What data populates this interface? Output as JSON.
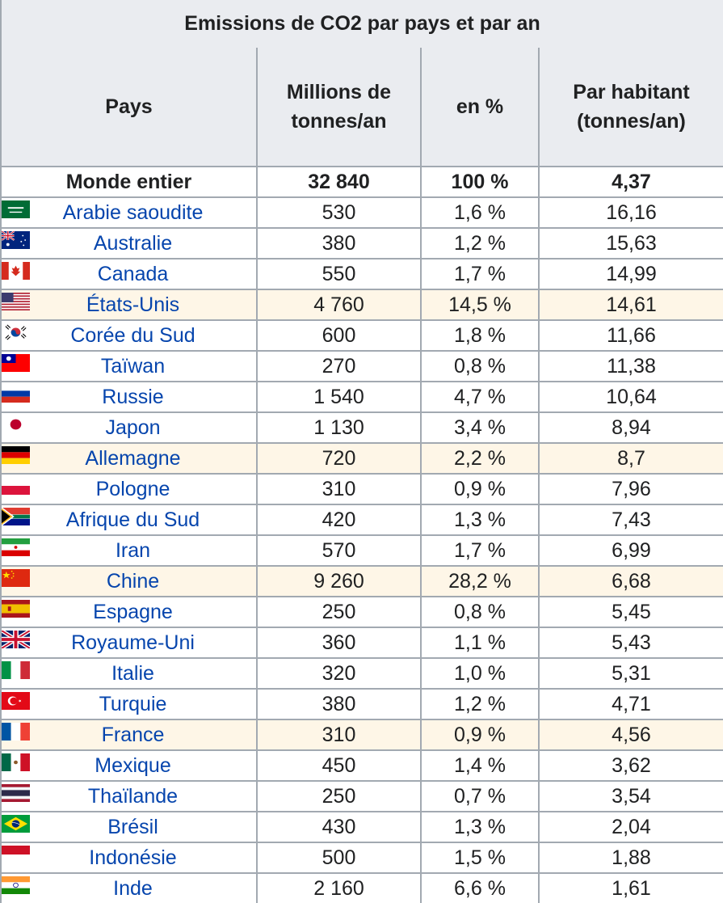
{
  "table": {
    "caption": "Emissions de CO2 par pays et par an",
    "headers": {
      "country": "Pays",
      "millions_line1": "Millions de",
      "millions_line2": "tonnes/an",
      "percent": "en %",
      "per_capita_line1": "Par habitant",
      "per_capita_line2": "(tonnes/an)"
    },
    "world": {
      "country": "Monde entier",
      "millions": "32 840",
      "percent": "100 %",
      "per_capita": "4,37"
    },
    "rows": [
      {
        "country": "Arabie saoudite",
        "millions": "530",
        "percent": "1,6 %",
        "per_capita": "16,16",
        "flag": "saudi-arabia-flag-icon",
        "highlight": false
      },
      {
        "country": "Australie",
        "millions": "380",
        "percent": "1,2 %",
        "per_capita": "15,63",
        "flag": "australia-flag-icon",
        "highlight": false
      },
      {
        "country": "Canada",
        "millions": "550",
        "percent": "1,7 %",
        "per_capita": "14,99",
        "flag": "canada-flag-icon",
        "highlight": false
      },
      {
        "country": "États-Unis",
        "millions": "4 760",
        "percent": "14,5 %",
        "per_capita": "14,61",
        "flag": "usa-flag-icon",
        "highlight": true
      },
      {
        "country": "Corée du Sud",
        "millions": "600",
        "percent": "1,8 %",
        "per_capita": "11,66",
        "flag": "south-korea-flag-icon",
        "highlight": false
      },
      {
        "country": "Taïwan",
        "millions": "270",
        "percent": "0,8 %",
        "per_capita": "11,38",
        "flag": "taiwan-flag-icon",
        "highlight": false
      },
      {
        "country": "Russie",
        "millions": "1 540",
        "percent": "4,7 %",
        "per_capita": "10,64",
        "flag": "russia-flag-icon",
        "highlight": false
      },
      {
        "country": "Japon",
        "millions": "1 130",
        "percent": "3,4 %",
        "per_capita": "8,94",
        "flag": "japan-flag-icon",
        "highlight": false
      },
      {
        "country": "Allemagne",
        "millions": "720",
        "percent": "2,2 %",
        "per_capita": "8,7",
        "flag": "germany-flag-icon",
        "highlight": true
      },
      {
        "country": "Pologne",
        "millions": "310",
        "percent": "0,9 %",
        "per_capita": "7,96",
        "flag": "poland-flag-icon",
        "highlight": false
      },
      {
        "country": "Afrique du Sud",
        "millions": "420",
        "percent": "1,3 %",
        "per_capita": "7,43",
        "flag": "south-africa-flag-icon",
        "highlight": false
      },
      {
        "country": "Iran",
        "millions": "570",
        "percent": "1,7 %",
        "per_capita": "6,99",
        "flag": "iran-flag-icon",
        "highlight": false
      },
      {
        "country": "Chine",
        "millions": "9 260",
        "percent": "28,2 %",
        "per_capita": "6,68",
        "flag": "china-flag-icon",
        "highlight": true
      },
      {
        "country": "Espagne",
        "millions": "250",
        "percent": "0,8 %",
        "per_capita": "5,45",
        "flag": "spain-flag-icon",
        "highlight": false
      },
      {
        "country": "Royaume-Uni",
        "millions": "360",
        "percent": "1,1 %",
        "per_capita": "5,43",
        "flag": "uk-flag-icon",
        "highlight": false
      },
      {
        "country": "Italie",
        "millions": "320",
        "percent": "1,0 %",
        "per_capita": "5,31",
        "flag": "italy-flag-icon",
        "highlight": false
      },
      {
        "country": "Turquie",
        "millions": "380",
        "percent": "1,2 %",
        "per_capita": "4,71",
        "flag": "turkey-flag-icon",
        "highlight": false
      },
      {
        "country": "France",
        "millions": "310",
        "percent": "0,9 %",
        "per_capita": "4,56",
        "flag": "france-flag-icon",
        "highlight": true
      },
      {
        "country": "Mexique",
        "millions": "450",
        "percent": "1,4 %",
        "per_capita": "3,62",
        "flag": "mexico-flag-icon",
        "highlight": false
      },
      {
        "country": "Thaïlande",
        "millions": "250",
        "percent": "0,7 %",
        "per_capita": "3,54",
        "flag": "thailand-flag-icon",
        "highlight": false
      },
      {
        "country": "Brésil",
        "millions": "430",
        "percent": "1,3 %",
        "per_capita": "2,04",
        "flag": "brazil-flag-icon",
        "highlight": false
      },
      {
        "country": "Indonésie",
        "millions": "500",
        "percent": "1,5 %",
        "per_capita": "1,88",
        "flag": "indonesia-flag-icon",
        "highlight": false
      },
      {
        "country": "Inde",
        "millions": "2 160",
        "percent": "6,6 %",
        "per_capita": "1,61",
        "flag": "india-flag-icon",
        "highlight": false
      }
    ]
  },
  "colors": {
    "header_bg": "#eaecf0",
    "border": "#a2a9b1",
    "link": "#0645ad",
    "highlight_bg": "#fef6e7",
    "text": "#202122"
  }
}
